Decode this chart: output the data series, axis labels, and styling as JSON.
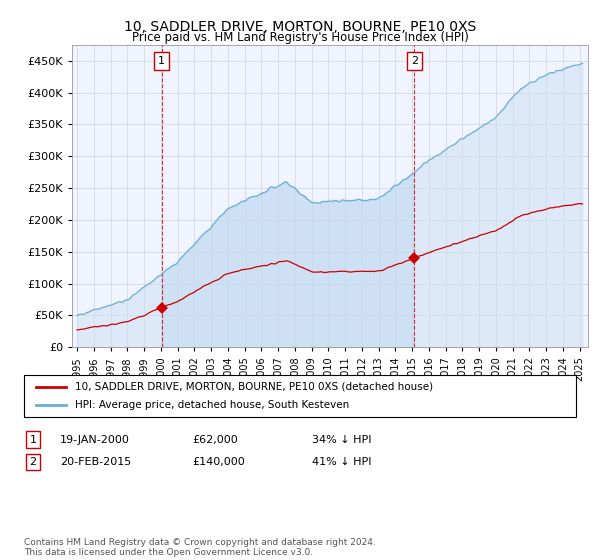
{
  "title": "10, SADDLER DRIVE, MORTON, BOURNE, PE10 0XS",
  "subtitle": "Price paid vs. HM Land Registry's House Price Index (HPI)",
  "hpi_color": "#6baed6",
  "hpi_fill_color": "#ddeeff",
  "price_color": "#cc0000",
  "sale1_date": 2000.05,
  "sale1_price": 62000,
  "sale2_date": 2015.13,
  "sale2_price": 140000,
  "legend_line1": "10, SADDLER DRIVE, MORTON, BOURNE, PE10 0XS (detached house)",
  "legend_line2": "HPI: Average price, detached house, South Kesteven",
  "footer": "Contains HM Land Registry data © Crown copyright and database right 2024.\nThis data is licensed under the Open Government Licence v3.0.",
  "xmin": 1994.7,
  "xmax": 2025.5,
  "ymin": 0,
  "ymax": 475000,
  "yticks": [
    0,
    50000,
    100000,
    150000,
    200000,
    250000,
    300000,
    350000,
    400000,
    450000
  ],
  "bg_color": "#ffffff",
  "plot_bg_color": "#f0f4ff"
}
